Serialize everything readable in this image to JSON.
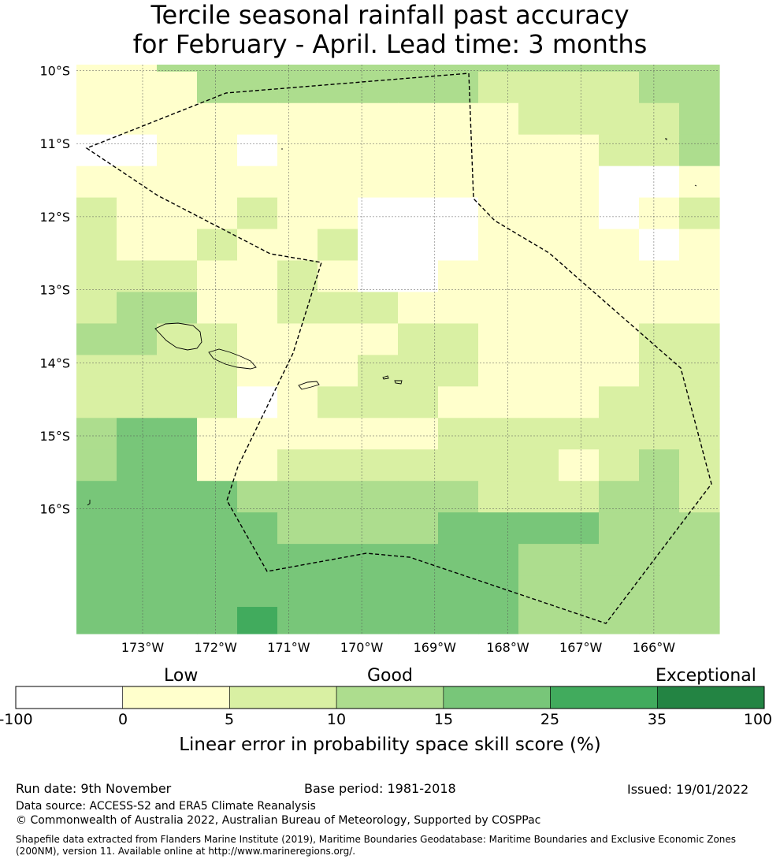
{
  "title_line1": "Tercile seasonal rainfall past accuracy",
  "title_line2": "for February - April. Lead time: 3 months",
  "map": {
    "lat_labels": [
      "10°S",
      "11°S",
      "12°S",
      "13°S",
      "14°S",
      "15°S",
      "16°S"
    ],
    "lon_labels": [
      "173°W",
      "172°W",
      "171°W",
      "170°W",
      "169°W",
      "168°W",
      "167°W",
      "166°W"
    ],
    "category_colors": [
      "#ffffff",
      "#ffffcc",
      "#d9f0a3",
      "#addd8e",
      "#78c679",
      "#41ab5d",
      "#238443"
    ],
    "grid_rows": [
      "1133333333333333",
      "1113333333222233",
      "1111111111122223",
      "0011011111111223",
      "1111111111111001",
      "2111211000111012",
      "2112112000111101",
      "2221121001111111",
      "2331122211111111",
      "3322111122111122",
      "2222111222111122",
      "2222012221111222",
      "3441111112222222",
      "3441122222221232",
      "4444333333222332",
      "4444433334444333",
      "4444444444433333",
      "4444444444433333",
      "4444544444433333"
    ],
    "row_height_ratios": [
      0.22,
      1,
      1,
      1,
      1,
      1,
      1,
      1,
      1,
      1,
      1,
      1,
      1,
      1,
      1,
      1,
      1,
      1,
      0.85
    ]
  },
  "colorbar": {
    "words": [
      "Low",
      "Good",
      "Exceptional"
    ],
    "ticks": [
      "-100",
      "0",
      "5",
      "10",
      "15",
      "25",
      "35",
      "100"
    ],
    "colors": [
      "#ffffff",
      "#ffffcc",
      "#d9f0a3",
      "#addd8e",
      "#78c679",
      "#41ab5d",
      "#238443"
    ],
    "label": "Linear error in probability space skill score (%)"
  },
  "footer": {
    "run_date": "Run date: 9th November",
    "base_period": "Base period: 1981-2018",
    "issued": "Issued: 19/01/2022",
    "data_source": "Data source: ACCESS-S2 and ERA5 Climate Reanalysis",
    "copyright": "© Commonwealth of Australia 2022, Australian Bureau of Meteorology, Supported by COSPPac",
    "shapefile": "Shapefile data extracted from Flanders Marine Institute (2019), Maritime Boundaries Geodatabase: Maritime Boundaries and Exclusive Economic Zones (200NM), version 11. Available online at http://www.marineregions.org/."
  }
}
